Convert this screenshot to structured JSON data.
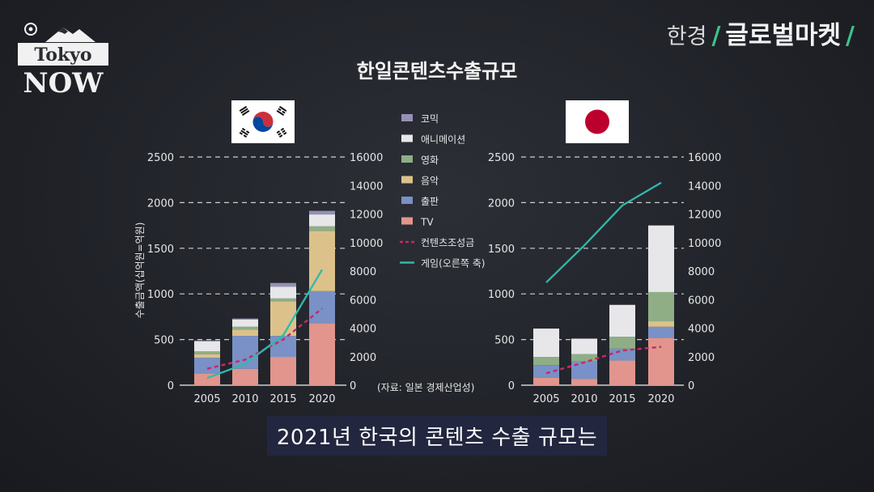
{
  "logo": {
    "line1": "Tokyo",
    "line2": "NOW"
  },
  "brand": {
    "part1": "한경",
    "part2": "글로벌마켓"
  },
  "title": "한일콘텐츠수출규모",
  "subtitle": "2021년 한국의 콘텐츠 수출 규모는",
  "source": "(자료: 일본 경제산업성)",
  "colors": {
    "comic": "#9690b5",
    "anime": "#e7e7ea",
    "film": "#8fae86",
    "music": "#dcc28a",
    "publishing": "#7991c6",
    "tv": "#e1958c",
    "fund_line": "#c42a6a",
    "game_line": "#2fb9ac",
    "grid": "#cfcfcf",
    "axis_text": "#e6e6e6"
  },
  "chart_data": [
    {
      "type": "bar",
      "country": "Korea",
      "stacked": true,
      "categories": [
        "2005",
        "2010",
        "2015",
        "2020"
      ],
      "ylabel": "수출금액(십억원=억원)",
      "ylim": [
        0,
        2500
      ],
      "yticks": [
        "0",
        "500",
        "1000",
        "1500",
        "2000",
        "2500"
      ],
      "y2lim": [
        0,
        16000
      ],
      "y2ticks": [
        "0",
        "2000",
        "4000",
        "6000",
        "8000",
        "10000",
        "12000",
        "14000",
        "16000"
      ],
      "series": [
        {
          "key": "tv",
          "name": "TV",
          "values": [
            130,
            180,
            310,
            680
          ]
        },
        {
          "key": "publishing",
          "name": "출판",
          "values": [
            170,
            360,
            230,
            350
          ]
        },
        {
          "key": "music",
          "name": "음악",
          "values": [
            40,
            70,
            380,
            660
          ]
        },
        {
          "key": "film",
          "name": "영화",
          "values": [
            30,
            30,
            30,
            50
          ]
        },
        {
          "key": "anime",
          "name": "애니메이션",
          "values": [
            110,
            80,
            130,
            130
          ]
        },
        {
          "key": "comic",
          "name": "코믹",
          "values": [
            10,
            10,
            40,
            40
          ]
        }
      ],
      "lines": [
        {
          "key": "fund_line",
          "name": "컨텐츠조성금",
          "style": "dashed",
          "axis": "left",
          "values": [
            180,
            280,
            500,
            840
          ]
        },
        {
          "key": "game_line",
          "name": "게임(오른쪽 축)",
          "style": "solid",
          "axis": "right",
          "values": [
            500,
            1500,
            3500,
            8100
          ]
        }
      ]
    },
    {
      "type": "bar",
      "country": "Japan",
      "stacked": true,
      "categories": [
        "2005",
        "2010",
        "2015",
        "2020"
      ],
      "ylim": [
        0,
        2500
      ],
      "yticks": [
        "0",
        "500",
        "1000",
        "1500",
        "2000",
        "2500"
      ],
      "y2lim": [
        0,
        16000
      ],
      "y2ticks": [
        "0",
        "2000",
        "4000",
        "6000",
        "8000",
        "10000",
        "12000",
        "14000",
        "16000"
      ],
      "series": [
        {
          "key": "tv",
          "name": "TV",
          "values": [
            80,
            70,
            270,
            520
          ]
        },
        {
          "key": "publishing",
          "name": "출판",
          "values": [
            140,
            190,
            130,
            120
          ]
        },
        {
          "key": "music",
          "name": "음악",
          "values": [
            0,
            0,
            0,
            60
          ]
        },
        {
          "key": "film",
          "name": "영화",
          "values": [
            90,
            80,
            130,
            320
          ]
        },
        {
          "key": "anime",
          "name": "애니메이션",
          "values": [
            310,
            170,
            350,
            730
          ]
        },
        {
          "key": "comic",
          "name": "코믹",
          "values": [
            0,
            0,
            0,
            0
          ]
        }
      ],
      "lines": [
        {
          "key": "fund_line",
          "name": "컨텐츠조성금",
          "style": "dashed",
          "axis": "left",
          "values": [
            130,
            250,
            380,
            420
          ]
        },
        {
          "key": "game_line",
          "name": "게임(오른쪽 축)",
          "style": "solid",
          "axis": "right",
          "values": [
            7200,
            9800,
            12600,
            14200
          ]
        }
      ]
    }
  ],
  "legend": [
    {
      "key": "comic",
      "label": "코믹",
      "kind": "box"
    },
    {
      "key": "anime",
      "label": "애니메이션",
      "kind": "box"
    },
    {
      "key": "film",
      "label": "영화",
      "kind": "box"
    },
    {
      "key": "music",
      "label": "음악",
      "kind": "box"
    },
    {
      "key": "publishing",
      "label": "출판",
      "kind": "box"
    },
    {
      "key": "tv",
      "label": "TV",
      "kind": "box"
    },
    {
      "key": "fund_line",
      "label": "컨텐츠조성금",
      "kind": "dashed"
    },
    {
      "key": "game_line",
      "label": "게임(오른쪽 축)",
      "kind": "solid"
    }
  ]
}
